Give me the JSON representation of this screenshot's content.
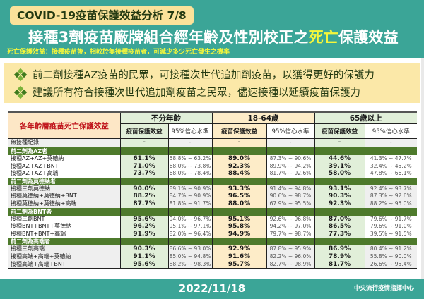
{
  "header": {
    "badge": "COVID-19疫苗保護效益分析 7/8",
    "title_pre": "接種3劑疫苗廠牌組合經年齡及性別校正之",
    "title_highlight": "死亡",
    "title_post": "保護效益",
    "subtitle": "死亡保護效益：接種疫苗後，相較於無接種疫苗者，可減少多少死亡發生之機率"
  },
  "bullets": [
    "前二劑接種AZ疫苗的民眾，可接種次世代追加劑疫苗，以獲得更好的保護力",
    "建議所有符合接種次世代追加劑疫苗之民眾，儘速接種以延續疫苗保護力"
  ],
  "table": {
    "corner": "各年齡層疫苗死亡保護效益",
    "age_groups": [
      "不分年齡",
      "18-64歲",
      "65歲以上"
    ],
    "sub_headers": [
      "疫苗保護效益",
      "95%信心水準"
    ],
    "no_vaccine": {
      "label": "無接種紀錄",
      "values": [
        "-",
        "-",
        "-",
        "-",
        "-",
        "-"
      ]
    },
    "groups": [
      {
        "title": "前二劑為AZ者",
        "rows": [
          {
            "label": "接種AZ+AZ+莫德納",
            "values": [
              "61.1%",
              "58.8% ~ 63.2%",
              "89.0%",
              "87.3% ~ 90.6%",
              "44.6%",
              "41.3% ~ 47.7%"
            ]
          },
          {
            "label": "接種AZ+AZ+BNT",
            "values": [
              "71.0%",
              "68.0% ~ 73.8%",
              "92.3%",
              "89.9% ~ 94.2%",
              "39.1%",
              "32.4% ~ 45.2%"
            ]
          },
          {
            "label": "接種AZ+AZ+高端",
            "values": [
              "73.7%",
              "68.0% ~ 78.4%",
              "88.4%",
              "81.7% ~ 92.6%",
              "58.0%",
              "47.8% ~ 66.1%"
            ]
          }
        ]
      },
      {
        "title": "前二劑為莫德納者",
        "rows": [
          {
            "label": "接種三劑莫德納",
            "values": [
              "90.0%",
              "89.1% ~ 90.9%",
              "93.3%",
              "91.4% ~ 94.8%",
              "93.1%",
              "92.4% ~ 93.7%"
            ]
          },
          {
            "label": "接種莫德納+莫德納+BNT",
            "values": [
              "88.2%",
              "84.7% ~ 90.9%",
              "96.5%",
              "90.6% ~ 98.7%",
              "90.3%",
              "87.3% ~ 92.6%"
            ]
          },
          {
            "label": "接種莫德納+莫德納+高端",
            "values": [
              "87.7%",
              "81.8% ~ 91.7%",
              "88.0%",
              "67.9% ~ 95.5%",
              "92.3%",
              "88.2% ~ 95.0%"
            ]
          }
        ]
      },
      {
        "title": "前二劑為BNT者",
        "rows": [
          {
            "label": "接種三劑BNT",
            "values": [
              "95.6%",
              "94.0% ~ 96.7%",
              "95.1%",
              "92.6% ~ 96.8%",
              "87.0%",
              "79.6% ~ 91.7%"
            ]
          },
          {
            "label": "接種BNT+BNT+莫德納",
            "values": [
              "96.2%",
              "95.1% ~ 97.1%",
              "95.8%",
              "94.2% ~ 97.0%",
              "86.5%",
              "79.6% ~ 91.0%"
            ]
          },
          {
            "label": "接種BNT+BNT+高端",
            "values": [
              "91.9%",
              "82.0% ~ 96.4%",
              "94.9%",
              "79.7% ~ 98.7%",
              "77.3%",
              "39.5% ~ 91.5%"
            ]
          }
        ]
      },
      {
        "title": "前二劑為高端者",
        "rows": [
          {
            "label": "接種三劑高端",
            "values": [
              "90.3%",
              "86.6% ~ 93.0%",
              "92.9%",
              "87.8% ~ 95.9%",
              "86.9%",
              "80.4% ~ 91.2%"
            ]
          },
          {
            "label": "接種高端+高端+莫德納",
            "values": [
              "91.1%",
              "85.0% ~ 94.8%",
              "91.6%",
              "82.2% ~ 96.0%",
              "78.9%",
              "55.8% ~ 90.0%"
            ]
          },
          {
            "label": "接種高端+高端+BNT",
            "values": [
              "95.6%",
              "88.2% ~ 98.3%",
              "95.7%",
              "82.7% ~ 98.9%",
              "81.7%",
              "26.6% ~ 95.4%"
            ]
          }
        ]
      }
    ]
  },
  "footer": {
    "date": "2022/11/18",
    "org": "中央流行疫情指揮中心"
  },
  "colors": {
    "teal": "#3ba597",
    "badge_yellow": "#fbe29a",
    "highlight_yellow": "#f6f63a",
    "group_green": "#4e7a2c",
    "corner_red": "#c0151c"
  }
}
